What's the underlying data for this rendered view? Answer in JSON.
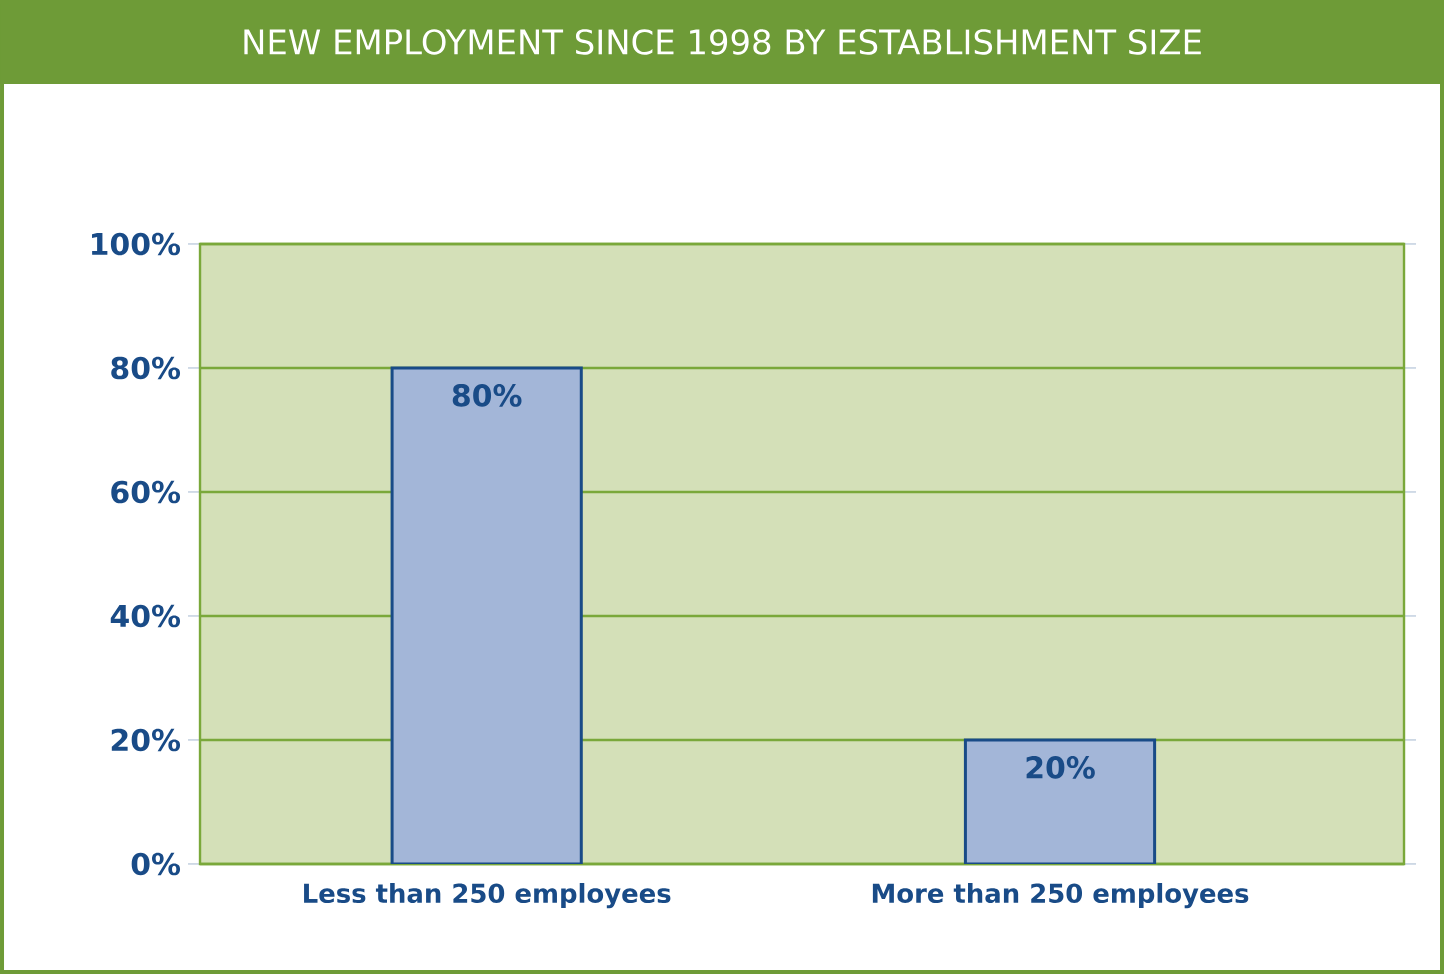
{
  "chart_data": {
    "type": "bar",
    "title": "NEW EMPLOYMENT SINCE 1998 BY ESTABLISHMENT SIZE",
    "categories": [
      "Less than 250 employees",
      "More than 250 employees"
    ],
    "values": [
      80,
      20
    ],
    "value_labels": [
      "80%",
      "20%"
    ],
    "color": "#a3b6d8",
    "ylim": [
      0,
      100
    ],
    "yticks": [
      {
        "value": 0,
        "label": "0%"
      },
      {
        "value": 20,
        "label": "20%"
      },
      {
        "value": 40,
        "label": "40%"
      },
      {
        "value": 60,
        "label": "60%"
      },
      {
        "value": 80,
        "label": "80%"
      },
      {
        "value": 100,
        "label": "100%"
      }
    ],
    "grid": "y"
  }
}
